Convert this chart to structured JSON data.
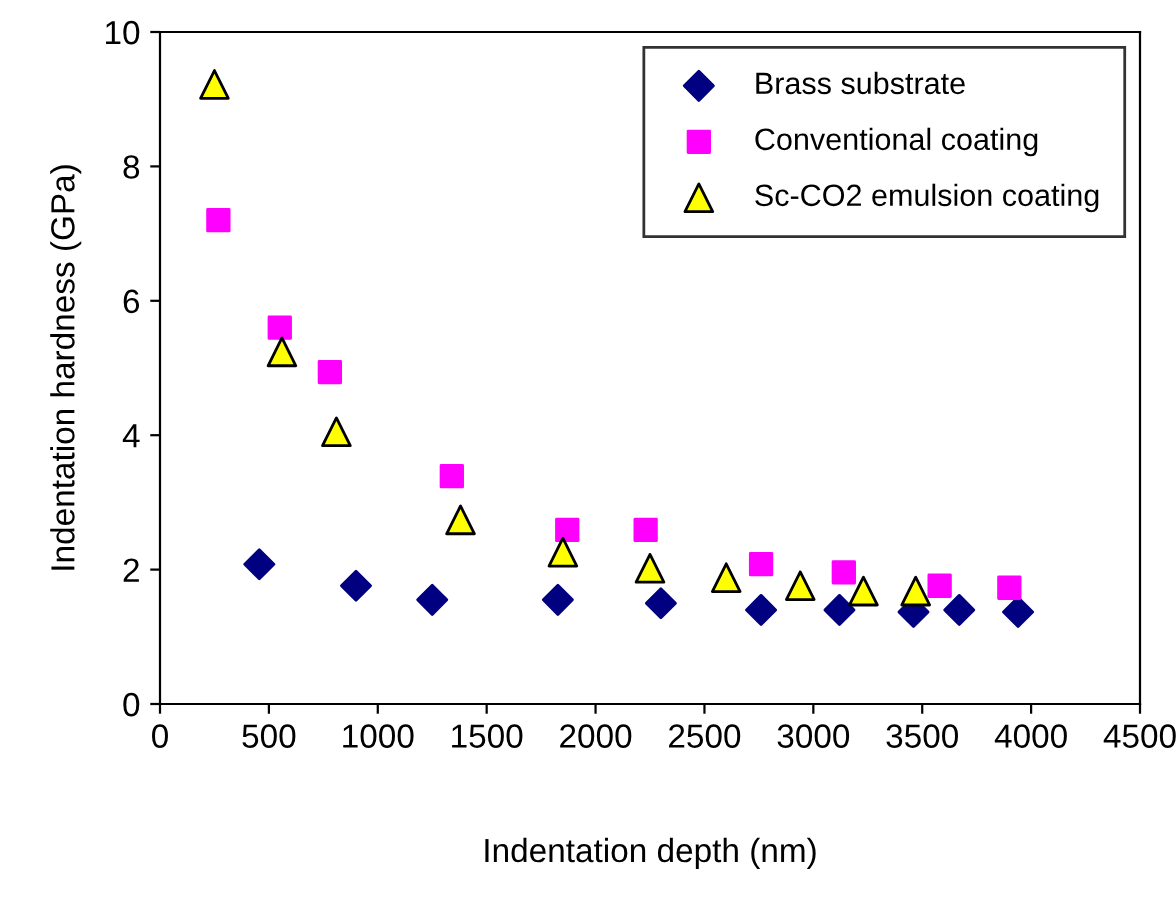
{
  "chart_data": {
    "type": "scatter",
    "xlabel": "Indentation depth (nm)",
    "ylabel": "Indentation hardness (GPa)",
    "xlim": [
      0,
      4500
    ],
    "xticks": [
      0,
      500,
      1000,
      1500,
      2000,
      2500,
      3000,
      3500,
      4000,
      4500
    ],
    "ylim": [
      0,
      10
    ],
    "yticks": [
      0,
      2,
      4,
      6,
      8,
      10
    ],
    "grid": false,
    "legend": "top right",
    "series": [
      {
        "name": "Brass substrate",
        "color": "#000080",
        "marker": "diamond",
        "x": [
          456,
          900,
          1250,
          1827,
          2300,
          2760,
          3120,
          3460,
          3670,
          3940
        ],
        "values": [
          2.08,
          1.76,
          1.55,
          1.55,
          1.5,
          1.4,
          1.4,
          1.37,
          1.4,
          1.37
        ]
      },
      {
        "name": "Conventional coating",
        "color": "#ff00ff",
        "marker": "square",
        "x": [
          268,
          550,
          780,
          1340,
          1870,
          2230,
          2760,
          3140,
          3580,
          3900
        ],
        "values": [
          7.2,
          5.6,
          4.94,
          3.39,
          2.59,
          2.59,
          2.08,
          1.96,
          1.76,
          1.73
        ]
      },
      {
        "name": "Sc-CO2 emulsion coating",
        "color": "#ffff00",
        "marker": "triangle",
        "x": [
          250,
          560,
          810,
          1380,
          1850,
          2250,
          2600,
          2940,
          3230,
          3470
        ],
        "values": [
          9.22,
          5.24,
          4.05,
          2.74,
          2.26,
          2.02,
          1.88,
          1.76,
          1.68,
          1.68
        ]
      }
    ]
  }
}
